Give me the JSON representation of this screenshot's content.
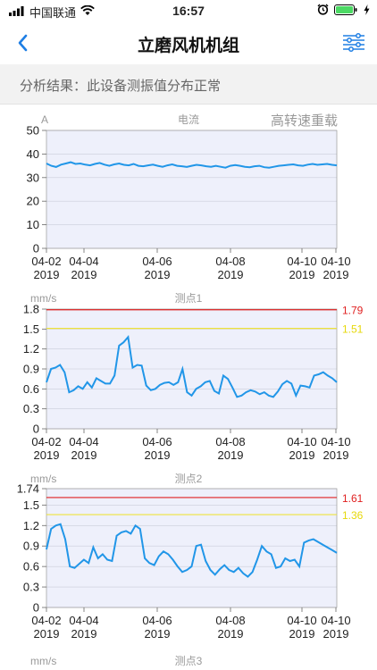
{
  "status": {
    "carrier": "中国联通",
    "time": "16:57"
  },
  "nav": {
    "title": "立磨风机机组"
  },
  "result": {
    "text": "分析结果：此设备测振值分布正常"
  },
  "charts": [
    {
      "unit": "A",
      "title": "电流",
      "tag": "高转速重载",
      "yticks": [
        "0",
        "10",
        "20",
        "30",
        "40",
        "50"
      ],
      "xticks": [
        [
          "04-02",
          "2019"
        ],
        [
          "04-04",
          "2019"
        ],
        [
          "04-06",
          "2019"
        ],
        [
          "04-08",
          "2019"
        ],
        [
          "04-10",
          "2019"
        ],
        [
          "04-10",
          "2019"
        ]
      ]
    },
    {
      "unit": "mm/s",
      "title": "测点1",
      "yticks": [
        "0",
        "0.3",
        "0.6",
        "0.9",
        "1.2",
        "1.5",
        "1.8"
      ],
      "xticks": [
        [
          "04-02",
          "2019"
        ],
        [
          "04-04",
          "2019"
        ],
        [
          "04-06",
          "2019"
        ],
        [
          "04-08",
          "2019"
        ],
        [
          "04-10",
          "2019"
        ],
        [
          "04-10",
          "2019"
        ]
      ],
      "limits": {
        "red": "1.79",
        "yellow": "1.51"
      }
    },
    {
      "unit": "mm/s",
      "title": "测点2",
      "yticks": [
        "0",
        "0.3",
        "0.6",
        "0.9",
        "1.2",
        "1.5",
        "1.74"
      ],
      "xticks": [
        [
          "04-02",
          "2019"
        ],
        [
          "04-04",
          "2019"
        ],
        [
          "04-06",
          "2019"
        ],
        [
          "04-08",
          "2019"
        ],
        [
          "04-10",
          "2019"
        ],
        [
          "04-10",
          "2019"
        ]
      ],
      "limits": {
        "red": "1.61",
        "yellow": "1.36"
      }
    },
    {
      "unit": "mm/s",
      "title": "测点3"
    }
  ],
  "chart_data": [
    {
      "type": "line",
      "title": "电流",
      "ylabel": "A",
      "ylim": [
        0,
        50
      ],
      "series": [
        {
          "values": [
            36,
            35,
            34.5,
            35.5,
            36,
            36.5,
            35.8,
            36,
            35.5,
            35.2,
            35.8,
            36.2,
            35.5,
            35,
            35.6,
            36,
            35.4,
            35.2,
            35.8,
            35,
            34.8,
            35.2,
            35.5,
            35,
            34.6,
            35.2,
            35.6,
            35,
            34.8,
            34.5,
            35,
            35.4,
            35.2,
            34.8,
            34.6,
            35,
            34.6,
            34.2,
            35,
            35.3,
            35,
            34.6,
            34.4,
            34.8,
            35,
            34.4,
            34.2,
            34.6,
            35,
            35.2,
            35.4,
            35.6,
            35.2,
            35,
            35.5,
            35.8,
            35.4,
            35.6,
            35.8,
            35.4,
            35.2
          ]
        }
      ]
    },
    {
      "type": "line",
      "title": "测点1",
      "ylabel": "mm/s",
      "ylim": [
        0,
        1.8
      ],
      "reference_lines": [
        {
          "value": 1.79,
          "color": "#e02020"
        },
        {
          "value": 1.51,
          "color": "#f0e020"
        }
      ],
      "series": [
        {
          "values": [
            0.7,
            0.9,
            0.92,
            0.96,
            0.85,
            0.55,
            0.58,
            0.64,
            0.6,
            0.7,
            0.62,
            0.76,
            0.72,
            0.68,
            0.68,
            0.8,
            1.25,
            1.3,
            1.38,
            0.92,
            0.96,
            0.95,
            0.65,
            0.58,
            0.6,
            0.66,
            0.69,
            0.7,
            0.66,
            0.7,
            0.9,
            0.55,
            0.5,
            0.6,
            0.64,
            0.7,
            0.72,
            0.57,
            0.53,
            0.8,
            0.75,
            0.62,
            0.48,
            0.5,
            0.55,
            0.58,
            0.56,
            0.52,
            0.55,
            0.5,
            0.48,
            0.56,
            0.67,
            0.72,
            0.68,
            0.5,
            0.65,
            0.64,
            0.62,
            0.8,
            0.82,
            0.85,
            0.8,
            0.76,
            0.7
          ]
        }
      ]
    },
    {
      "type": "line",
      "title": "测点2",
      "ylabel": "mm/s",
      "ylim": [
        0,
        1.74
      ],
      "reference_lines": [
        {
          "value": 1.61,
          "color": "#e02020"
        },
        {
          "value": 1.36,
          "color": "#f0e020"
        }
      ],
      "series": [
        {
          "values": [
            0.85,
            1.15,
            1.2,
            1.22,
            1.0,
            0.6,
            0.58,
            0.64,
            0.7,
            0.65,
            0.88,
            0.72,
            0.78,
            0.7,
            0.68,
            1.05,
            1.1,
            1.12,
            1.08,
            1.2,
            1.15,
            0.72,
            0.65,
            0.62,
            0.75,
            0.82,
            0.78,
            0.7,
            0.6,
            0.52,
            0.55,
            0.6,
            0.9,
            0.92,
            0.68,
            0.55,
            0.48,
            0.56,
            0.62,
            0.55,
            0.52,
            0.58,
            0.5,
            0.45,
            0.52,
            0.7,
            0.9,
            0.82,
            0.78,
            0.58,
            0.6,
            0.72,
            0.68,
            0.7,
            0.6,
            0.95,
            0.98,
            1.0,
            0.96,
            0.92,
            0.88,
            0.84,
            0.8
          ]
        }
      ]
    }
  ]
}
